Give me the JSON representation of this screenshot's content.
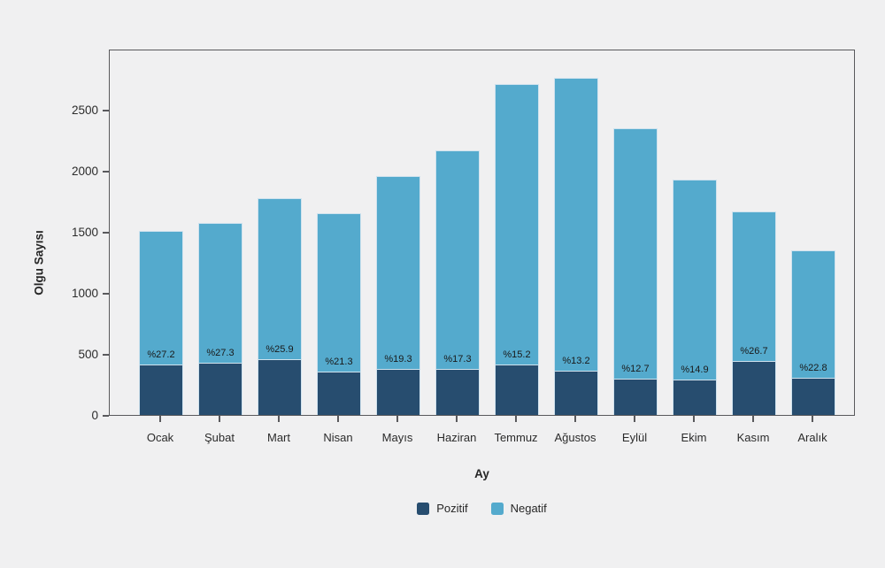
{
  "colors": {
    "background": "#f0f0f1",
    "bar_edge": "#cfe2ee",
    "axis_line": "#59595c",
    "tick_text": "#2b2b2b",
    "label_text": "#191919"
  },
  "chart_data": {
    "type": "bar",
    "stacked": true,
    "title": "",
    "xlabel": "Ay",
    "ylabel": "Olgu Sayısı",
    "categories": [
      "Ocak",
      "Şubat",
      "Mart",
      "Nisan",
      "Mayıs",
      "Haziran",
      "Temmuz",
      "Ağustos",
      "Eylül",
      "Ekim",
      "Kasım",
      "Aralık"
    ],
    "series": [
      {
        "name": "Pozitif",
        "color": "#274d6f",
        "values": [
          410,
          430,
          460,
          352,
          378,
          375,
          412,
          364,
          298,
          287,
          445,
          307
        ]
      },
      {
        "name": "Negatif",
        "color": "#54aacd",
        "values": [
          1100,
          1145,
          1315,
          1300,
          1580,
          1790,
          2295,
          2395,
          2050,
          1640,
          1222,
          1040
        ]
      }
    ],
    "totals": [
      1510,
      1575,
      1775,
      1652,
      1958,
      2165,
      2707,
      2759,
      2348,
      1927,
      1667,
      1347
    ],
    "bar_labels": [
      "%27.2",
      "%27.3",
      "%25.9",
      "%21.3",
      "%19.3",
      "%17.3",
      "%15.2",
      "%13.2",
      "%12.7",
      "%14.9",
      "%26.7",
      "%22.8"
    ],
    "yticks": [
      0,
      500,
      1000,
      1500,
      2000,
      2500
    ],
    "ylim": [
      0,
      3000
    ],
    "grid": false,
    "legend": {
      "position": "bottom",
      "entries": [
        "Pozitif",
        "Negatif"
      ]
    }
  }
}
